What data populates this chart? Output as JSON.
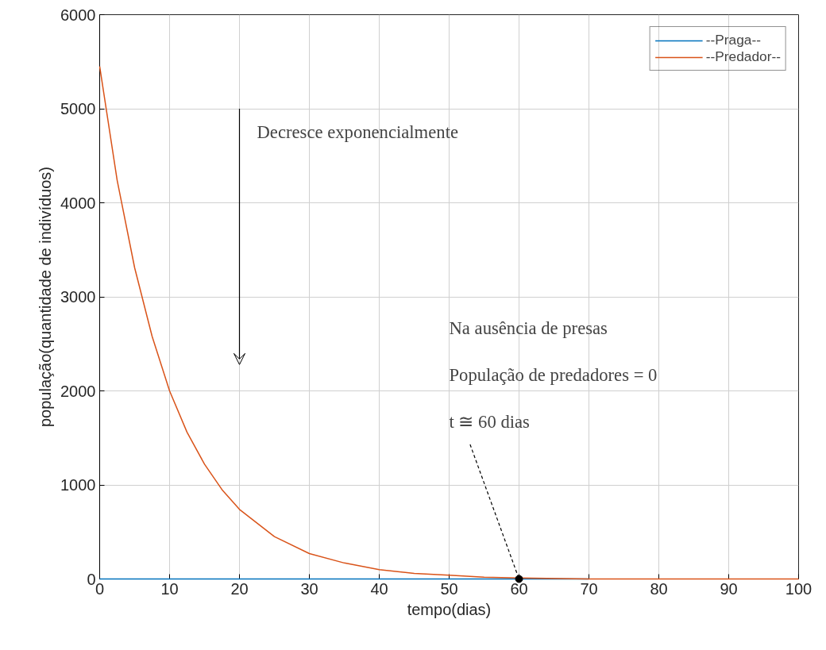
{
  "chart_data": {
    "type": "line",
    "xlabel": "tempo(dias)",
    "ylabel": "população(quantidade de indivíduos)",
    "xlim": [
      0,
      100
    ],
    "xticks": [
      0,
      10,
      20,
      30,
      40,
      50,
      60,
      70,
      80,
      90,
      100
    ],
    "ylim": [
      0,
      6000
    ],
    "yticks": [
      0,
      1000,
      2000,
      3000,
      4000,
      5000,
      6000
    ],
    "grid": true,
    "legend": "top right",
    "line_style": "solid",
    "marker": "none",
    "series": [
      {
        "name": "--Praga--",
        "color": "#0072bd",
        "x": [
          0,
          10,
          20,
          30,
          40,
          50,
          60,
          70
        ],
        "values": [
          0,
          0,
          0,
          0,
          0,
          0,
          0,
          0
        ]
      },
      {
        "name": "--Predador--",
        "color": "#d95319",
        "x": [
          0,
          2.5,
          5,
          7.5,
          10,
          12.5,
          15,
          17.5,
          20,
          25,
          30,
          35,
          40,
          45,
          50,
          55,
          60,
          70,
          80,
          90,
          100
        ],
        "values": [
          5450,
          4240,
          3310,
          2580,
          2000,
          1560,
          1220,
          950,
          740,
          450,
          270,
          170,
          100,
          60,
          40,
          20,
          10,
          0,
          0,
          0,
          0
        ]
      }
    ],
    "annotations": [
      "Decresce exponencialmente",
      "Na ausência de presas",
      "População de predadores = 0",
      {
        "text": "t ≅ 60 dias",
        "x": 60,
        "y": 0
      }
    ]
  }
}
